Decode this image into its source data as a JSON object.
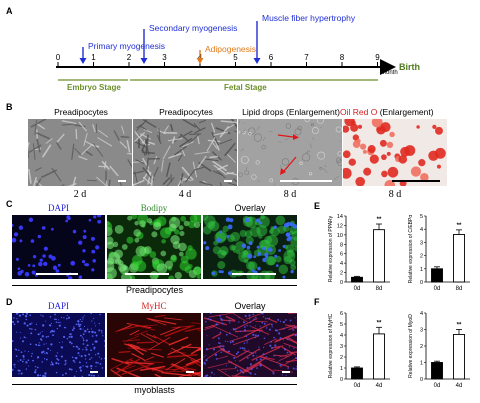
{
  "panels": {
    "A": "A",
    "B": "B",
    "C": "C",
    "D": "D",
    "E": "E",
    "F": "F"
  },
  "timeline": {
    "ticks": [
      "0",
      "1",
      "2",
      "3",
      "4",
      "5",
      "6",
      "7",
      "8",
      "9"
    ],
    "month_label": "Month",
    "birth_label": "Birth",
    "embryo_stage": "Embryo Stage",
    "fetal_stage": "Fetal Stage",
    "events": {
      "primary": "Primary myogenesis",
      "secondary": "Secondary myogenesis",
      "adipo": "Adipogenesis",
      "hypertrophy": "Muscle fiber hypertrophy"
    },
    "colors": {
      "myo": "#1f2fd6",
      "adipo": "#e07a1a",
      "stage": "#6b8f2a",
      "birth": "#4f7a1f"
    }
  },
  "panel_b": {
    "captions": [
      "Preadipocytes",
      "Preadipocytes",
      "Lipid drops (Enlargement)",
      "Oil Red O",
      "(Enlargement)"
    ],
    "days": [
      "2 d",
      "4 d",
      "8 d",
      "8 d"
    ]
  },
  "panel_c": {
    "labels": [
      "DAPI",
      "Bodipy",
      "Overlay"
    ],
    "cell_type": "Preadipocytes"
  },
  "panel_d": {
    "labels": [
      "DAPI",
      "MyHC",
      "Overlay"
    ],
    "cell_type": "myoblasts"
  },
  "chart_data": [
    {
      "type": "bar",
      "panel": "E",
      "categories": [
        "0d",
        "8d"
      ],
      "values": [
        1,
        11.1
      ],
      "errors": [
        0.2,
        1.2
      ],
      "ylabel": "Relative expression of PPARγ",
      "ylim": [
        0,
        14
      ],
      "yticks": [
        0,
        2,
        4,
        6,
        8,
        10,
        12,
        14
      ],
      "significance": "**"
    },
    {
      "type": "bar",
      "panel": "E",
      "categories": [
        "0d",
        "8d"
      ],
      "values": [
        1,
        3.6
      ],
      "errors": [
        0.15,
        0.35
      ],
      "ylabel": "Relative expression of C/EBPα",
      "ylim": [
        0,
        5
      ],
      "yticks": [
        0,
        1,
        2,
        3,
        4,
        5
      ],
      "significance": "**"
    },
    {
      "type": "bar",
      "panel": "F",
      "categories": [
        "0d",
        "4d"
      ],
      "values": [
        1,
        4.1
      ],
      "errors": [
        0.1,
        0.6
      ],
      "ylabel": "Relative expression of MyHC",
      "ylim": [
        0,
        6
      ],
      "yticks": [
        0,
        1,
        2,
        3,
        4,
        5,
        6
      ],
      "significance": "**"
    },
    {
      "type": "bar",
      "panel": "F",
      "categories": [
        "0d",
        "4d"
      ],
      "values": [
        1,
        2.7
      ],
      "errors": [
        0.08,
        0.3
      ],
      "ylabel": "Relative expression of MyoD",
      "ylim": [
        0,
        4
      ],
      "yticks": [
        0,
        1,
        2,
        3,
        4
      ],
      "significance": "**"
    }
  ]
}
